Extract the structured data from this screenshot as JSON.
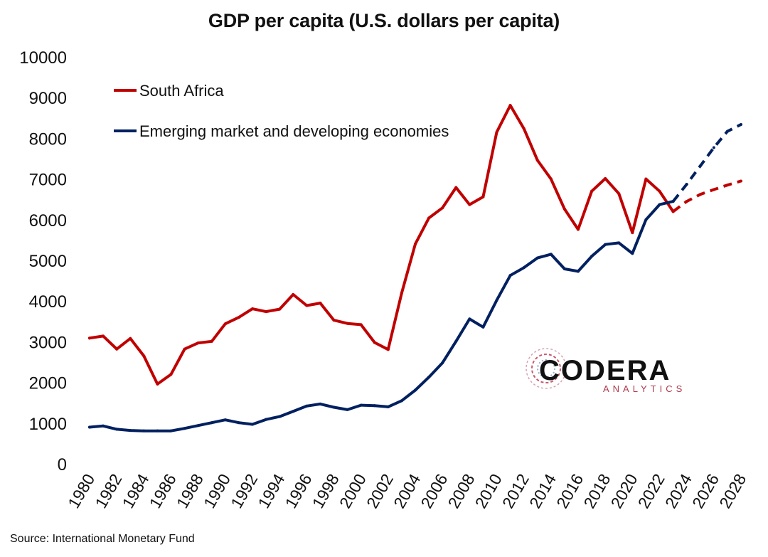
{
  "chart_data": {
    "type": "line",
    "title": "GDP per capita (U.S. dollars per capita)",
    "ylim": [
      0,
      10000
    ],
    "yticks": [
      0,
      1000,
      2000,
      3000,
      4000,
      5000,
      6000,
      7000,
      8000,
      9000,
      10000
    ],
    "xlim": [
      1980,
      2028
    ],
    "xticks": [
      1980,
      1982,
      1984,
      1986,
      1988,
      1990,
      1992,
      1994,
      1996,
      1998,
      2000,
      2002,
      2004,
      2006,
      2008,
      2010,
      2012,
      2014,
      2016,
      2018,
      2020,
      2022,
      2024,
      2026,
      2028
    ],
    "legend_position": "top-left",
    "grid": false,
    "series": [
      {
        "name": "South Africa",
        "color": "#c00000",
        "x": [
          1980,
          1981,
          1982,
          1983,
          1984,
          1985,
          1986,
          1987,
          1988,
          1989,
          1990,
          1991,
          1992,
          1993,
          1994,
          1995,
          1996,
          1997,
          1998,
          1999,
          2000,
          2001,
          2002,
          2003,
          2004,
          2005,
          2006,
          2007,
          2008,
          2009,
          2010,
          2011,
          2012,
          2013,
          2014,
          2015,
          2016,
          2017,
          2018,
          2019,
          2020,
          2021,
          2022,
          2023,
          2024,
          2025,
          2026,
          2027,
          2028
        ],
        "values": [
          3090,
          3140,
          2820,
          3080,
          2650,
          1960,
          2200,
          2820,
          2970,
          3010,
          3440,
          3600,
          3810,
          3740,
          3800,
          4160,
          3890,
          3950,
          3530,
          3450,
          3420,
          2980,
          2810,
          4200,
          5400,
          6040,
          6290,
          6790,
          6370,
          6560,
          8150,
          8810,
          8240,
          7460,
          7000,
          6260,
          5760,
          6700,
          7010,
          6640,
          5680,
          7000,
          6700,
          6200,
          6450,
          6620,
          6740,
          6850,
          6950
        ],
        "forecast_from": 2023
      },
      {
        "name": "Emerging market and developing economies",
        "color": "#002060",
        "x": [
          1980,
          1981,
          1982,
          1983,
          1984,
          1985,
          1986,
          1987,
          1988,
          1989,
          1990,
          1991,
          1992,
          1993,
          1994,
          1995,
          1996,
          1997,
          1998,
          1999,
          2000,
          2001,
          2002,
          2003,
          2004,
          2005,
          2006,
          2007,
          2008,
          2009,
          2010,
          2011,
          2012,
          2013,
          2014,
          2015,
          2016,
          2017,
          2018,
          2019,
          2020,
          2021,
          2022,
          2023,
          2024,
          2025,
          2026,
          2027,
          2028
        ],
        "values": [
          900,
          930,
          850,
          820,
          810,
          810,
          810,
          870,
          940,
          1010,
          1080,
          1010,
          970,
          1090,
          1160,
          1290,
          1420,
          1470,
          1390,
          1330,
          1440,
          1430,
          1400,
          1550,
          1810,
          2130,
          2480,
          3010,
          3560,
          3360,
          4020,
          4630,
          4820,
          5060,
          5150,
          4790,
          4730,
          5100,
          5390,
          5430,
          5170,
          6000,
          6370,
          6450,
          6870,
          7320,
          7770,
          8170,
          8340
        ],
        "forecast_from": 2023
      }
    ]
  },
  "source": "Source: International Monetary Fund",
  "logo": {
    "word": "CODERA",
    "sub": "ANALYTICS"
  }
}
